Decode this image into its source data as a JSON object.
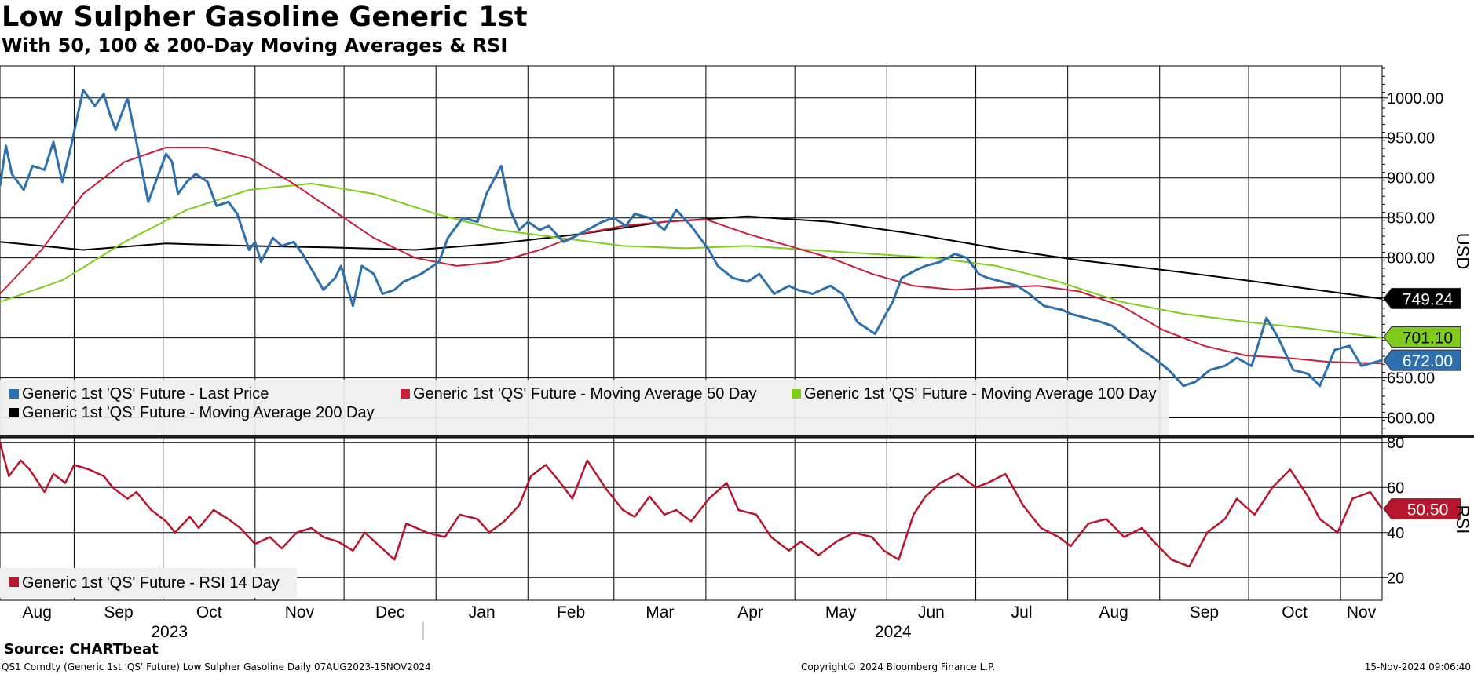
{
  "header": {
    "title": "Low Sulpher Gasoline Generic 1st",
    "subtitle": "With 50, 100 & 200-Day Moving Averages & RSI"
  },
  "footer": {
    "source": "Source: CHARTbeat",
    "ticker": "QS1 Comdty (Generic 1st 'QS' Future) Low Sulpher Gasoline  Daily 07AUG2023-15NOV2024",
    "copyright": "Copyright© 2024 Bloomberg Finance L.P.",
    "timestamp": "15-Nov-2024 09:06:40"
  },
  "colors": {
    "price": "#2e6fad",
    "ma50": "#c8203a",
    "ma100": "#7fcc1c",
    "ma200": "#000000",
    "rsi": "#b8152e",
    "grid": "#000000"
  },
  "chart_data": [
    {
      "type": "line",
      "panel": "price",
      "ylabel": "USD",
      "ylim": [
        577,
        1040
      ],
      "yticks": [
        "1000.00",
        "950.00",
        "900.00",
        "850.00",
        "800.00",
        "750.00",
        "700.00",
        "650.00",
        "600.00"
      ],
      "ytick_values": [
        1000,
        950,
        900,
        850,
        800,
        750,
        700,
        650,
        600
      ],
      "x_tick_labels": [
        "Aug",
        "Sep",
        "Oct",
        "Nov",
        "Dec",
        "Jan",
        "Feb",
        "Mar",
        "Apr",
        "May",
        "Jun",
        "Jul",
        "Aug",
        "Sep",
        "Oct",
        "Nov"
      ],
      "x_tick_dates": [
        "2023-08-01",
        "2023-09-01",
        "2023-10-01",
        "2023-11-01",
        "2023-12-01",
        "2024-01-01",
        "2024-02-01",
        "2024-03-01",
        "2024-04-01",
        "2024-05-01",
        "2024-06-01",
        "2024-07-01",
        "2024-08-01",
        "2024-09-01",
        "2024-10-01",
        "2024-11-01"
      ],
      "years": [
        {
          "label": "2023",
          "date": "2023-10-01"
        },
        {
          "label": "2024",
          "date": "2024-06-01"
        }
      ],
      "x_range": [
        "2023-08-07",
        "2024-11-15"
      ],
      "legend": [
        {
          "name": "Generic 1st 'QS' Future - Last Price",
          "color": "#2e6fad"
        },
        {
          "name": "Generic 1st 'QS' Future - Moving Average 50 Day",
          "color": "#c8203a"
        },
        {
          "name": "Generic 1st 'QS' Future - Moving Average 100 Day",
          "color": "#7fcc1c"
        },
        {
          "name": "Generic 1st 'QS' Future - Moving Average 200 Day",
          "color": "#000000"
        }
      ],
      "last_value_labels": [
        {
          "series": "ma200",
          "text": "749.24",
          "value": 749.24
        },
        {
          "series": "ma100",
          "text": "701.10",
          "value": 701.1
        },
        {
          "series": "price",
          "text": "672.00",
          "value": 672.0
        }
      ],
      "series": [
        {
          "name": "Generic 1st 'QS' Future - Last Price",
          "key": "price",
          "color": "#2e6fad",
          "x": [
            "2023-08-07",
            "2023-08-09",
            "2023-08-11",
            "2023-08-15",
            "2023-08-18",
            "2023-08-22",
            "2023-08-25",
            "2023-08-28",
            "2023-08-31",
            "2023-09-04",
            "2023-09-06",
            "2023-09-08",
            "2023-09-11",
            "2023-09-13",
            "2023-09-15",
            "2023-09-19",
            "2023-09-22",
            "2023-09-26",
            "2023-09-28",
            "2023-10-02",
            "2023-10-04",
            "2023-10-06",
            "2023-10-09",
            "2023-10-12",
            "2023-10-16",
            "2023-10-19",
            "2023-10-23",
            "2023-10-26",
            "2023-10-30",
            "2023-11-01",
            "2023-11-03",
            "2023-11-07",
            "2023-11-10",
            "2023-11-14",
            "2023-11-17",
            "2023-11-21",
            "2023-11-24",
            "2023-11-28",
            "2023-11-30",
            "2023-12-04",
            "2023-12-07",
            "2023-12-11",
            "2023-12-14",
            "2023-12-18",
            "2023-12-21",
            "2023-12-27",
            "2024-01-02",
            "2024-01-05",
            "2024-01-10",
            "2024-01-15",
            "2024-01-18",
            "2024-01-23",
            "2024-01-26",
            "2024-01-29",
            "2024-02-01",
            "2024-02-05",
            "2024-02-08",
            "2024-02-13",
            "2024-02-16",
            "2024-02-21",
            "2024-02-26",
            "2024-03-01",
            "2024-03-05",
            "2024-03-08",
            "2024-03-13",
            "2024-03-18",
            "2024-03-22",
            "2024-03-27",
            "2024-04-02",
            "2024-04-05",
            "2024-04-10",
            "2024-04-15",
            "2024-04-19",
            "2024-04-24",
            "2024-04-29",
            "2024-05-02",
            "2024-05-07",
            "2024-05-13",
            "2024-05-17",
            "2024-05-22",
            "2024-05-28",
            "2024-06-03",
            "2024-06-06",
            "2024-06-11",
            "2024-06-14",
            "2024-06-19",
            "2024-06-24",
            "2024-06-28",
            "2024-07-02",
            "2024-07-05",
            "2024-07-10",
            "2024-07-15",
            "2024-07-19",
            "2024-07-24",
            "2024-07-30",
            "2024-08-02",
            "2024-08-07",
            "2024-08-12",
            "2024-08-16",
            "2024-08-21",
            "2024-08-26",
            "2024-08-30",
            "2024-09-04",
            "2024-09-09",
            "2024-09-13",
            "2024-09-18",
            "2024-09-23",
            "2024-09-27",
            "2024-10-02",
            "2024-10-07",
            "2024-10-11",
            "2024-10-16",
            "2024-10-21",
            "2024-10-25",
            "2024-10-30",
            "2024-11-04",
            "2024-11-08",
            "2024-11-13",
            "2024-11-15"
          ],
          "values": [
            890,
            940,
            905,
            885,
            915,
            910,
            945,
            895,
            940,
            1010,
            1000,
            990,
            1005,
            980,
            960,
            1000,
            945,
            870,
            890,
            930,
            920,
            880,
            895,
            905,
            895,
            865,
            870,
            855,
            810,
            820,
            795,
            825,
            815,
            820,
            805,
            780,
            760,
            775,
            790,
            740,
            790,
            780,
            755,
            760,
            770,
            780,
            795,
            825,
            850,
            845,
            880,
            915,
            860,
            835,
            845,
            835,
            840,
            820,
            825,
            835,
            845,
            850,
            840,
            855,
            850,
            835,
            860,
            840,
            810,
            790,
            775,
            770,
            780,
            755,
            765,
            760,
            755,
            765,
            755,
            720,
            705,
            745,
            775,
            785,
            790,
            795,
            805,
            800,
            780,
            775,
            770,
            765,
            755,
            740,
            735,
            730,
            725,
            720,
            715,
            700,
            685,
            675,
            660,
            640,
            645,
            660,
            665,
            675,
            665,
            725,
            700,
            660,
            655,
            640,
            685,
            690,
            665,
            670,
            672
          ]
        },
        {
          "name": "Generic 1st 'QS' Future - Moving Average 50 Day",
          "key": "ma50",
          "color": "#c8203a",
          "x": [
            "2023-08-07",
            "2023-08-21",
            "2023-09-04",
            "2023-09-18",
            "2023-10-02",
            "2023-10-16",
            "2023-10-30",
            "2023-11-13",
            "2023-11-27",
            "2023-12-11",
            "2023-12-25",
            "2024-01-08",
            "2024-01-22",
            "2024-02-05",
            "2024-02-19",
            "2024-03-04",
            "2024-03-18",
            "2024-04-01",
            "2024-04-15",
            "2024-04-29",
            "2024-05-13",
            "2024-05-27",
            "2024-06-10",
            "2024-06-24",
            "2024-07-08",
            "2024-07-22",
            "2024-08-05",
            "2024-08-19",
            "2024-09-02",
            "2024-09-16",
            "2024-09-30",
            "2024-10-14",
            "2024-10-28",
            "2024-11-15"
          ],
          "values": [
            755,
            810,
            880,
            920,
            938,
            938,
            925,
            895,
            860,
            825,
            800,
            790,
            795,
            810,
            830,
            840,
            845,
            848,
            830,
            815,
            800,
            780,
            765,
            760,
            763,
            765,
            758,
            740,
            710,
            690,
            678,
            675,
            670,
            668
          ]
        },
        {
          "name": "Generic 1st 'QS' Future - Moving Average 100 Day",
          "key": "ma100",
          "color": "#7fcc1c",
          "x": [
            "2023-08-07",
            "2023-08-28",
            "2023-09-18",
            "2023-10-09",
            "2023-10-30",
            "2023-11-20",
            "2023-12-11",
            "2024-01-01",
            "2024-01-22",
            "2024-02-12",
            "2024-03-04",
            "2024-03-25",
            "2024-04-15",
            "2024-05-06",
            "2024-05-27",
            "2024-06-17",
            "2024-07-08",
            "2024-07-29",
            "2024-08-19",
            "2024-09-09",
            "2024-09-30",
            "2024-10-21",
            "2024-11-15"
          ],
          "values": [
            745,
            772,
            820,
            860,
            885,
            893,
            880,
            855,
            835,
            825,
            815,
            812,
            815,
            810,
            805,
            800,
            790,
            770,
            745,
            730,
            720,
            712,
            700
          ]
        },
        {
          "name": "Generic 1st 'QS' Future - Moving Average 200 Day",
          "key": "ma200",
          "color": "#000000",
          "x": [
            "2023-08-07",
            "2023-09-04",
            "2023-10-02",
            "2023-10-30",
            "2023-11-27",
            "2023-12-25",
            "2024-01-22",
            "2024-02-19",
            "2024-03-18",
            "2024-04-15",
            "2024-05-13",
            "2024-06-10",
            "2024-07-08",
            "2024-08-05",
            "2024-09-02",
            "2024-09-30",
            "2024-10-28",
            "2024-11-15"
          ],
          "values": [
            820,
            810,
            818,
            815,
            813,
            810,
            818,
            830,
            845,
            852,
            845,
            830,
            812,
            797,
            785,
            772,
            758,
            749
          ]
        }
      ]
    },
    {
      "type": "line",
      "panel": "rsi",
      "ylabel": "RSI",
      "ylim": [
        10,
        82
      ],
      "yticks": [
        "80",
        "60",
        "40",
        "20"
      ],
      "ytick_values": [
        80,
        60,
        40,
        20
      ],
      "legend": [
        {
          "name": "Generic 1st 'QS' Future - RSI 14 Day",
          "color": "#b8152e"
        }
      ],
      "last_value_labels": [
        {
          "series": "rsi",
          "text": "50.50",
          "value": 50.5
        }
      ],
      "series": [
        {
          "name": "Generic 1st 'QS' Future - RSI 14 Day",
          "key": "rsi",
          "color": "#b8152e",
          "x": [
            "2023-08-07",
            "2023-08-10",
            "2023-08-14",
            "2023-08-17",
            "2023-08-22",
            "2023-08-25",
            "2023-08-29",
            "2023-09-01",
            "2023-09-06",
            "2023-09-11",
            "2023-09-14",
            "2023-09-19",
            "2023-09-22",
            "2023-09-27",
            "2023-10-02",
            "2023-10-05",
            "2023-10-10",
            "2023-10-13",
            "2023-10-18",
            "2023-10-23",
            "2023-10-27",
            "2023-11-01",
            "2023-11-06",
            "2023-11-10",
            "2023-11-15",
            "2023-11-20",
            "2023-11-24",
            "2023-11-29",
            "2023-12-04",
            "2023-12-08",
            "2023-12-13",
            "2023-12-18",
            "2023-12-22",
            "2023-12-29",
            "2024-01-04",
            "2024-01-09",
            "2024-01-15",
            "2024-01-19",
            "2024-01-24",
            "2024-01-29",
            "2024-02-02",
            "2024-02-07",
            "2024-02-12",
            "2024-02-16",
            "2024-02-21",
            "2024-02-27",
            "2024-03-04",
            "2024-03-08",
            "2024-03-13",
            "2024-03-18",
            "2024-03-22",
            "2024-03-27",
            "2024-04-02",
            "2024-04-08",
            "2024-04-12",
            "2024-04-18",
            "2024-04-23",
            "2024-04-29",
            "2024-05-03",
            "2024-05-09",
            "2024-05-15",
            "2024-05-21",
            "2024-05-27",
            "2024-05-31",
            "2024-06-05",
            "2024-06-10",
            "2024-06-14",
            "2024-06-19",
            "2024-06-25",
            "2024-07-01",
            "2024-07-05",
            "2024-07-11",
            "2024-07-17",
            "2024-07-23",
            "2024-07-29",
            "2024-08-02",
            "2024-08-08",
            "2024-08-14",
            "2024-08-20",
            "2024-08-26",
            "2024-08-30",
            "2024-09-05",
            "2024-09-11",
            "2024-09-17",
            "2024-09-23",
            "2024-09-27",
            "2024-10-03",
            "2024-10-09",
            "2024-10-15",
            "2024-10-21",
            "2024-10-25",
            "2024-10-31",
            "2024-11-05",
            "2024-11-11",
            "2024-11-15"
          ],
          "values": [
            80,
            65,
            72,
            68,
            58,
            66,
            62,
            70,
            68,
            65,
            60,
            55,
            58,
            50,
            45,
            40,
            47,
            42,
            50,
            46,
            42,
            35,
            38,
            33,
            40,
            42,
            38,
            36,
            32,
            40,
            34,
            28,
            44,
            40,
            38,
            48,
            46,
            40,
            45,
            52,
            65,
            70,
            62,
            55,
            72,
            60,
            50,
            47,
            56,
            48,
            50,
            45,
            55,
            62,
            50,
            48,
            38,
            32,
            36,
            30,
            36,
            40,
            38,
            32,
            28,
            48,
            56,
            62,
            66,
            60,
            62,
            66,
            52,
            42,
            38,
            34,
            44,
            46,
            38,
            42,
            36,
            28,
            25,
            40,
            46,
            55,
            48,
            60,
            68,
            56,
            46,
            40,
            55,
            58,
            50.5
          ]
        }
      ]
    }
  ]
}
